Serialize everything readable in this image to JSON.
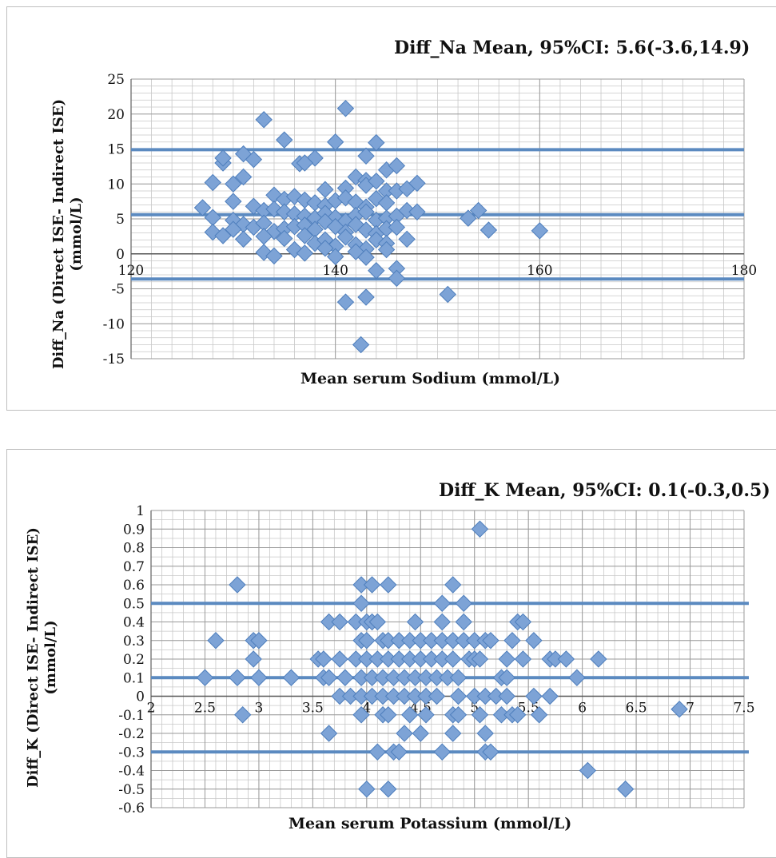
{
  "chart_data": [
    {
      "type": "scatter",
      "title": "Diff_Na Mean, 95%CI: 5.6(-3.6,14.9)",
      "xlabel": "Mean serum Sodium (mmol/L)",
      "ylabel": "Diff_Na (Direct ISE- Indirect ISE) (mmol/L)",
      "xlim": [
        120,
        180
      ],
      "ylim": [
        -15,
        25
      ],
      "x_ticks": [
        120,
        140,
        160,
        180
      ],
      "y_ticks": [
        25,
        20,
        15,
        10,
        5,
        0,
        -5,
        -10,
        -15
      ],
      "grid": true,
      "reference_lines": [
        14.9,
        5.6,
        -3.6
      ],
      "colors": {
        "marker": "#7da3d6",
        "marker_edge": "#4f7fbd",
        "line": "#5b8ac0",
        "grid": "#bcbcbc"
      },
      "points": [
        [
          141,
          20.8
        ],
        [
          133,
          19.2
        ],
        [
          131,
          14.3
        ],
        [
          135,
          16.3
        ],
        [
          140,
          16
        ],
        [
          144,
          15.9
        ],
        [
          143,
          14
        ],
        [
          138,
          13.7
        ],
        [
          129,
          13
        ],
        [
          129,
          13.7
        ],
        [
          132,
          13.5
        ],
        [
          136.5,
          12.9
        ],
        [
          137,
          13
        ],
        [
          145,
          12
        ],
        [
          146,
          12.6
        ],
        [
          142,
          11
        ],
        [
          143,
          10.5
        ],
        [
          128,
          10.2
        ],
        [
          131,
          11
        ],
        [
          130,
          10
        ],
        [
          139,
          9.2
        ],
        [
          141,
          9.4
        ],
        [
          143,
          9.8
        ],
        [
          144,
          10.4
        ],
        [
          145,
          9
        ],
        [
          146,
          9
        ],
        [
          147,
          9.3
        ],
        [
          148,
          10.1
        ],
        [
          134,
          8.4
        ],
        [
          135,
          7.8
        ],
        [
          136,
          8.2
        ],
        [
          137,
          7.7
        ],
        [
          138,
          7.3
        ],
        [
          139,
          6.9
        ],
        [
          140,
          7.6
        ],
        [
          141,
          8
        ],
        [
          142,
          7.4
        ],
        [
          143,
          6.7
        ],
        [
          144,
          7.9
        ],
        [
          145,
          7.3
        ],
        [
          130,
          7.5
        ],
        [
          132,
          6.8
        ],
        [
          133,
          6.2
        ],
        [
          134,
          6.4
        ],
        [
          135,
          6
        ],
        [
          136,
          5.7
        ],
        [
          137,
          5.4
        ],
        [
          138,
          5.1
        ],
        [
          139,
          5.8
        ],
        [
          140,
          5.2
        ],
        [
          141,
          4.7
        ],
        [
          142,
          5.5
        ],
        [
          143,
          6
        ],
        [
          144,
          4.8
        ],
        [
          145,
          5.1
        ],
        [
          146,
          5.4
        ],
        [
          147,
          6.2
        ],
        [
          148,
          6
        ],
        [
          127,
          6.6
        ],
        [
          128,
          5.2
        ],
        [
          130,
          4.8
        ],
        [
          131,
          4.2
        ],
        [
          132,
          3.8
        ],
        [
          133,
          4.4
        ],
        [
          134,
          3.2
        ],
        [
          135,
          3.6
        ],
        [
          136,
          3.9
        ],
        [
          137,
          4.1
        ],
        [
          138,
          3.5
        ],
        [
          139,
          4.6
        ],
        [
          140,
          3.9
        ],
        [
          141,
          3.1
        ],
        [
          142,
          4.2
        ],
        [
          143,
          3.4
        ],
        [
          144,
          2.9
        ],
        [
          145,
          3.6
        ],
        [
          146,
          3.8
        ],
        [
          128,
          3.1
        ],
        [
          129,
          2.6
        ],
        [
          130,
          3.5
        ],
        [
          131,
          2.1
        ],
        [
          133,
          2.5
        ],
        [
          135,
          2.2
        ],
        [
          137,
          2.6
        ],
        [
          138,
          1.5
        ],
        [
          139,
          2
        ],
        [
          140,
          1.1
        ],
        [
          141,
          2.4
        ],
        [
          142,
          1.3
        ],
        [
          143,
          0.7
        ],
        [
          144,
          2
        ],
        [
          145,
          1.5
        ],
        [
          147,
          2.1
        ],
        [
          133,
          0.2
        ],
        [
          134,
          -0.3
        ],
        [
          136,
          0.6
        ],
        [
          137,
          0.1
        ],
        [
          139,
          0.8
        ],
        [
          140,
          -0.4
        ],
        [
          142,
          0.3
        ],
        [
          143,
          -0.5
        ],
        [
          145,
          0.6
        ],
        [
          146,
          -2.1
        ],
        [
          144,
          -2.4
        ],
        [
          146,
          -3.5
        ],
        [
          153,
          5.1
        ],
        [
          154,
          6.2
        ],
        [
          155,
          3.4
        ],
        [
          160,
          3.3
        ],
        [
          151,
          -5.8
        ],
        [
          141,
          -6.9
        ],
        [
          143,
          -6.2
        ],
        [
          142.5,
          -13
        ]
      ]
    },
    {
      "type": "scatter",
      "title": "Diff_K Mean, 95%CI: 0.1(-0.3,0.5)",
      "xlabel": "Mean serum Potassium (mmol/L)",
      "ylabel": "Diff_K (Direct ISE- Indirect ISE) (mmol/L)",
      "xlim": [
        2,
        7.5
      ],
      "ylim": [
        -0.6,
        1
      ],
      "x_ticks": [
        2,
        2.5,
        3,
        3.5,
        4,
        4.5,
        5,
        5.5,
        6,
        6.5,
        7,
        7.5
      ],
      "x_tick_labels": [
        "2",
        "2.5",
        "3",
        "3.5",
        "4",
        "4.5",
        "5",
        "5.5",
        "6",
        "6.5",
        "7",
        "7.5"
      ],
      "y_ticks": [
        1,
        0.9,
        0.8,
        0.7,
        0.6,
        0.5,
        0.4,
        0.3,
        0.2,
        0.1,
        0,
        -0.1,
        -0.2,
        -0.3,
        -0.4,
        -0.5,
        -0.6
      ],
      "y_tick_labels": [
        "1",
        "0.9",
        "0.8",
        "0.7",
        "0.6",
        "0.5",
        "0.4",
        "0.3",
        "0.2",
        "0.1",
        "0",
        "-0.1",
        "-0.2",
        "-0.3",
        "-0.4",
        "-0.5",
        "-0.6"
      ],
      "grid": true,
      "reference_lines": [
        0.5,
        0.1,
        -0.3
      ],
      "colors": {
        "marker": "#7da3d6",
        "marker_edge": "#4f7fbd",
        "line": "#5b8ac0",
        "grid": "#bcbcbc"
      },
      "points": [
        [
          5.05,
          0.9
        ],
        [
          2.8,
          0.6
        ],
        [
          3.95,
          0.6
        ],
        [
          4.05,
          0.6
        ],
        [
          4.2,
          0.6
        ],
        [
          4.8,
          0.6
        ],
        [
          3.95,
          0.5
        ],
        [
          4.7,
          0.5
        ],
        [
          4.9,
          0.5
        ],
        [
          3.65,
          0.4
        ],
        [
          3.75,
          0.4
        ],
        [
          3.9,
          0.4
        ],
        [
          4.0,
          0.4
        ],
        [
          4.05,
          0.4
        ],
        [
          4.1,
          0.4
        ],
        [
          4.45,
          0.4
        ],
        [
          4.7,
          0.4
        ],
        [
          4.9,
          0.4
        ],
        [
          5.4,
          0.4
        ],
        [
          5.45,
          0.4
        ],
        [
          2.6,
          0.3
        ],
        [
          2.95,
          0.3
        ],
        [
          3.0,
          0.3
        ],
        [
          3.95,
          0.3
        ],
        [
          4.0,
          0.3
        ],
        [
          4.15,
          0.3
        ],
        [
          4.2,
          0.3
        ],
        [
          4.3,
          0.3
        ],
        [
          4.4,
          0.3
        ],
        [
          4.5,
          0.3
        ],
        [
          4.6,
          0.3
        ],
        [
          4.7,
          0.3
        ],
        [
          4.8,
          0.3
        ],
        [
          4.9,
          0.3
        ],
        [
          5.0,
          0.3
        ],
        [
          5.1,
          0.3
        ],
        [
          5.15,
          0.3
        ],
        [
          5.35,
          0.3
        ],
        [
          5.55,
          0.3
        ],
        [
          2.95,
          0.2
        ],
        [
          3.55,
          0.2
        ],
        [
          3.6,
          0.2
        ],
        [
          3.75,
          0.2
        ],
        [
          3.9,
          0.2
        ],
        [
          4.0,
          0.2
        ],
        [
          4.1,
          0.2
        ],
        [
          4.2,
          0.2
        ],
        [
          4.3,
          0.2
        ],
        [
          4.4,
          0.2
        ],
        [
          4.5,
          0.2
        ],
        [
          4.6,
          0.2
        ],
        [
          4.7,
          0.2
        ],
        [
          4.8,
          0.2
        ],
        [
          4.95,
          0.2
        ],
        [
          5.0,
          0.2
        ],
        [
          5.05,
          0.2
        ],
        [
          5.3,
          0.2
        ],
        [
          5.45,
          0.2
        ],
        [
          5.7,
          0.2
        ],
        [
          5.75,
          0.2
        ],
        [
          5.85,
          0.2
        ],
        [
          6.15,
          0.2
        ],
        [
          2.5,
          0.1
        ],
        [
          2.8,
          0.1
        ],
        [
          3.0,
          0.1
        ],
        [
          3.3,
          0.1
        ],
        [
          3.6,
          0.1
        ],
        [
          3.65,
          0.1
        ],
        [
          3.8,
          0.1
        ],
        [
          3.95,
          0.1
        ],
        [
          4.05,
          0.1
        ],
        [
          4.15,
          0.1
        ],
        [
          4.25,
          0.1
        ],
        [
          4.35,
          0.1
        ],
        [
          4.45,
          0.1
        ],
        [
          4.55,
          0.1
        ],
        [
          4.65,
          0.1
        ],
        [
          4.75,
          0.1
        ],
        [
          4.85,
          0.1
        ],
        [
          5.25,
          0.1
        ],
        [
          5.3,
          0.1
        ],
        [
          5.95,
          0.1
        ],
        [
          3.75,
          0
        ],
        [
          3.85,
          0
        ],
        [
          3.95,
          0
        ],
        [
          4.05,
          0
        ],
        [
          4.15,
          0
        ],
        [
          4.25,
          0
        ],
        [
          4.35,
          0
        ],
        [
          4.45,
          0
        ],
        [
          4.55,
          0
        ],
        [
          4.65,
          0
        ],
        [
          4.85,
          0
        ],
        [
          5.0,
          0
        ],
        [
          5.1,
          0
        ],
        [
          5.2,
          0
        ],
        [
          5.3,
          0
        ],
        [
          5.55,
          0
        ],
        [
          5.7,
          0
        ],
        [
          2.85,
          -0.1
        ],
        [
          3.95,
          -0.1
        ],
        [
          4.15,
          -0.1
        ],
        [
          4.2,
          -0.1
        ],
        [
          4.4,
          -0.1
        ],
        [
          4.55,
          -0.1
        ],
        [
          4.8,
          -0.1
        ],
        [
          4.85,
          -0.1
        ],
        [
          5.05,
          -0.1
        ],
        [
          5.25,
          -0.1
        ],
        [
          5.35,
          -0.1
        ],
        [
          5.4,
          -0.1
        ],
        [
          5.6,
          -0.1
        ],
        [
          6.9,
          -0.07
        ],
        [
          3.65,
          -0.2
        ],
        [
          4.35,
          -0.2
        ],
        [
          4.5,
          -0.2
        ],
        [
          4.8,
          -0.2
        ],
        [
          5.1,
          -0.2
        ],
        [
          4.1,
          -0.3
        ],
        [
          4.25,
          -0.3
        ],
        [
          4.3,
          -0.3
        ],
        [
          4.7,
          -0.3
        ],
        [
          5.1,
          -0.3
        ],
        [
          5.15,
          -0.3
        ],
        [
          6.05,
          -0.4
        ],
        [
          4.0,
          -0.5
        ],
        [
          4.2,
          -0.5
        ],
        [
          6.4,
          -0.5
        ]
      ]
    }
  ]
}
